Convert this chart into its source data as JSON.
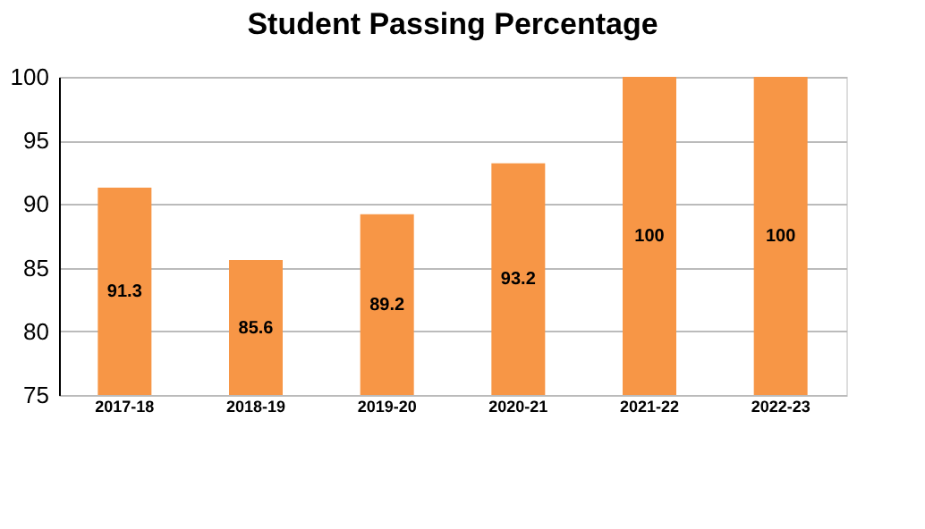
{
  "chart_data": {
    "type": "bar",
    "title": "Student Passing Percentage",
    "categories": [
      "2017-18",
      "2018-19",
      "2019-20",
      "2020-21",
      "2021-22",
      "2022-23"
    ],
    "values": [
      91.3,
      85.6,
      89.2,
      93.2,
      100,
      100
    ],
    "color": "#f79646",
    "ylim": [
      75,
      100
    ],
    "yticks": [
      75,
      80,
      85,
      90,
      95,
      100
    ],
    "grid": "y",
    "data_labels": true
  }
}
